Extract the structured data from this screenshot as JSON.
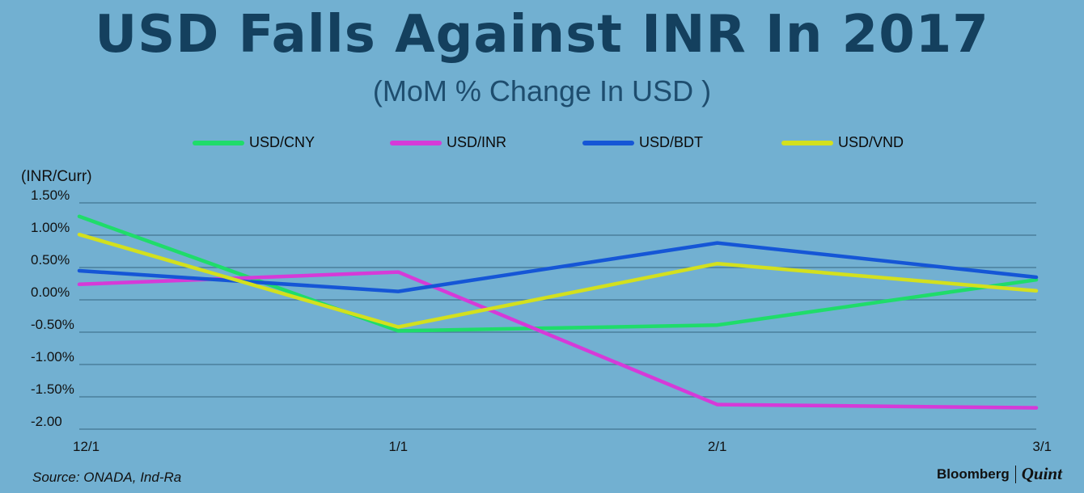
{
  "header": {
    "title": "USD Falls Against INR In 2017",
    "subtitle": "(MoM % Change In USD )"
  },
  "footer": {
    "source": "Source: ONADA, Ind-Ra",
    "brand_left": "Bloomberg",
    "brand_right": "Quint"
  },
  "chart_data": {
    "type": "line",
    "title": "USD Falls Against INR In 2017",
    "subtitle": "(MoM % Change In USD )",
    "ylabel": "(INR/Curr)",
    "xlabel": "",
    "x": [
      "12/1",
      "1/1",
      "2/1",
      "3/1"
    ],
    "y_ticks": [
      {
        "value": 1.5,
        "label": "1.50%"
      },
      {
        "value": 1.0,
        "label": "1.00%"
      },
      {
        "value": 0.5,
        "label": "0.50%"
      },
      {
        "value": 0.0,
        "label": "0.00%"
      },
      {
        "value": -0.5,
        "label": "-0.50%"
      },
      {
        "value": -1.0,
        "label": "-1.00%"
      },
      {
        "value": -1.5,
        "label": "-1.50%"
      },
      {
        "value": -2.0,
        "label": "-2.00"
      }
    ],
    "ylim": [
      -2.0,
      1.5
    ],
    "grid": true,
    "legend_position": "top",
    "series": [
      {
        "name": "USD/CNY",
        "color": "#1fdc6a",
        "values": [
          1.29,
          -0.48,
          -0.39,
          0.31
        ]
      },
      {
        "name": "USD/INR",
        "color": "#d63ad8",
        "values": [
          0.24,
          0.43,
          -1.62,
          -1.67
        ]
      },
      {
        "name": "USD/BDT",
        "color": "#1556d6",
        "values": [
          0.45,
          0.13,
          0.88,
          0.35
        ]
      },
      {
        "name": "USD/VND",
        "color": "#d3e01e",
        "values": [
          1.01,
          -0.42,
          0.56,
          0.14
        ]
      }
    ]
  }
}
